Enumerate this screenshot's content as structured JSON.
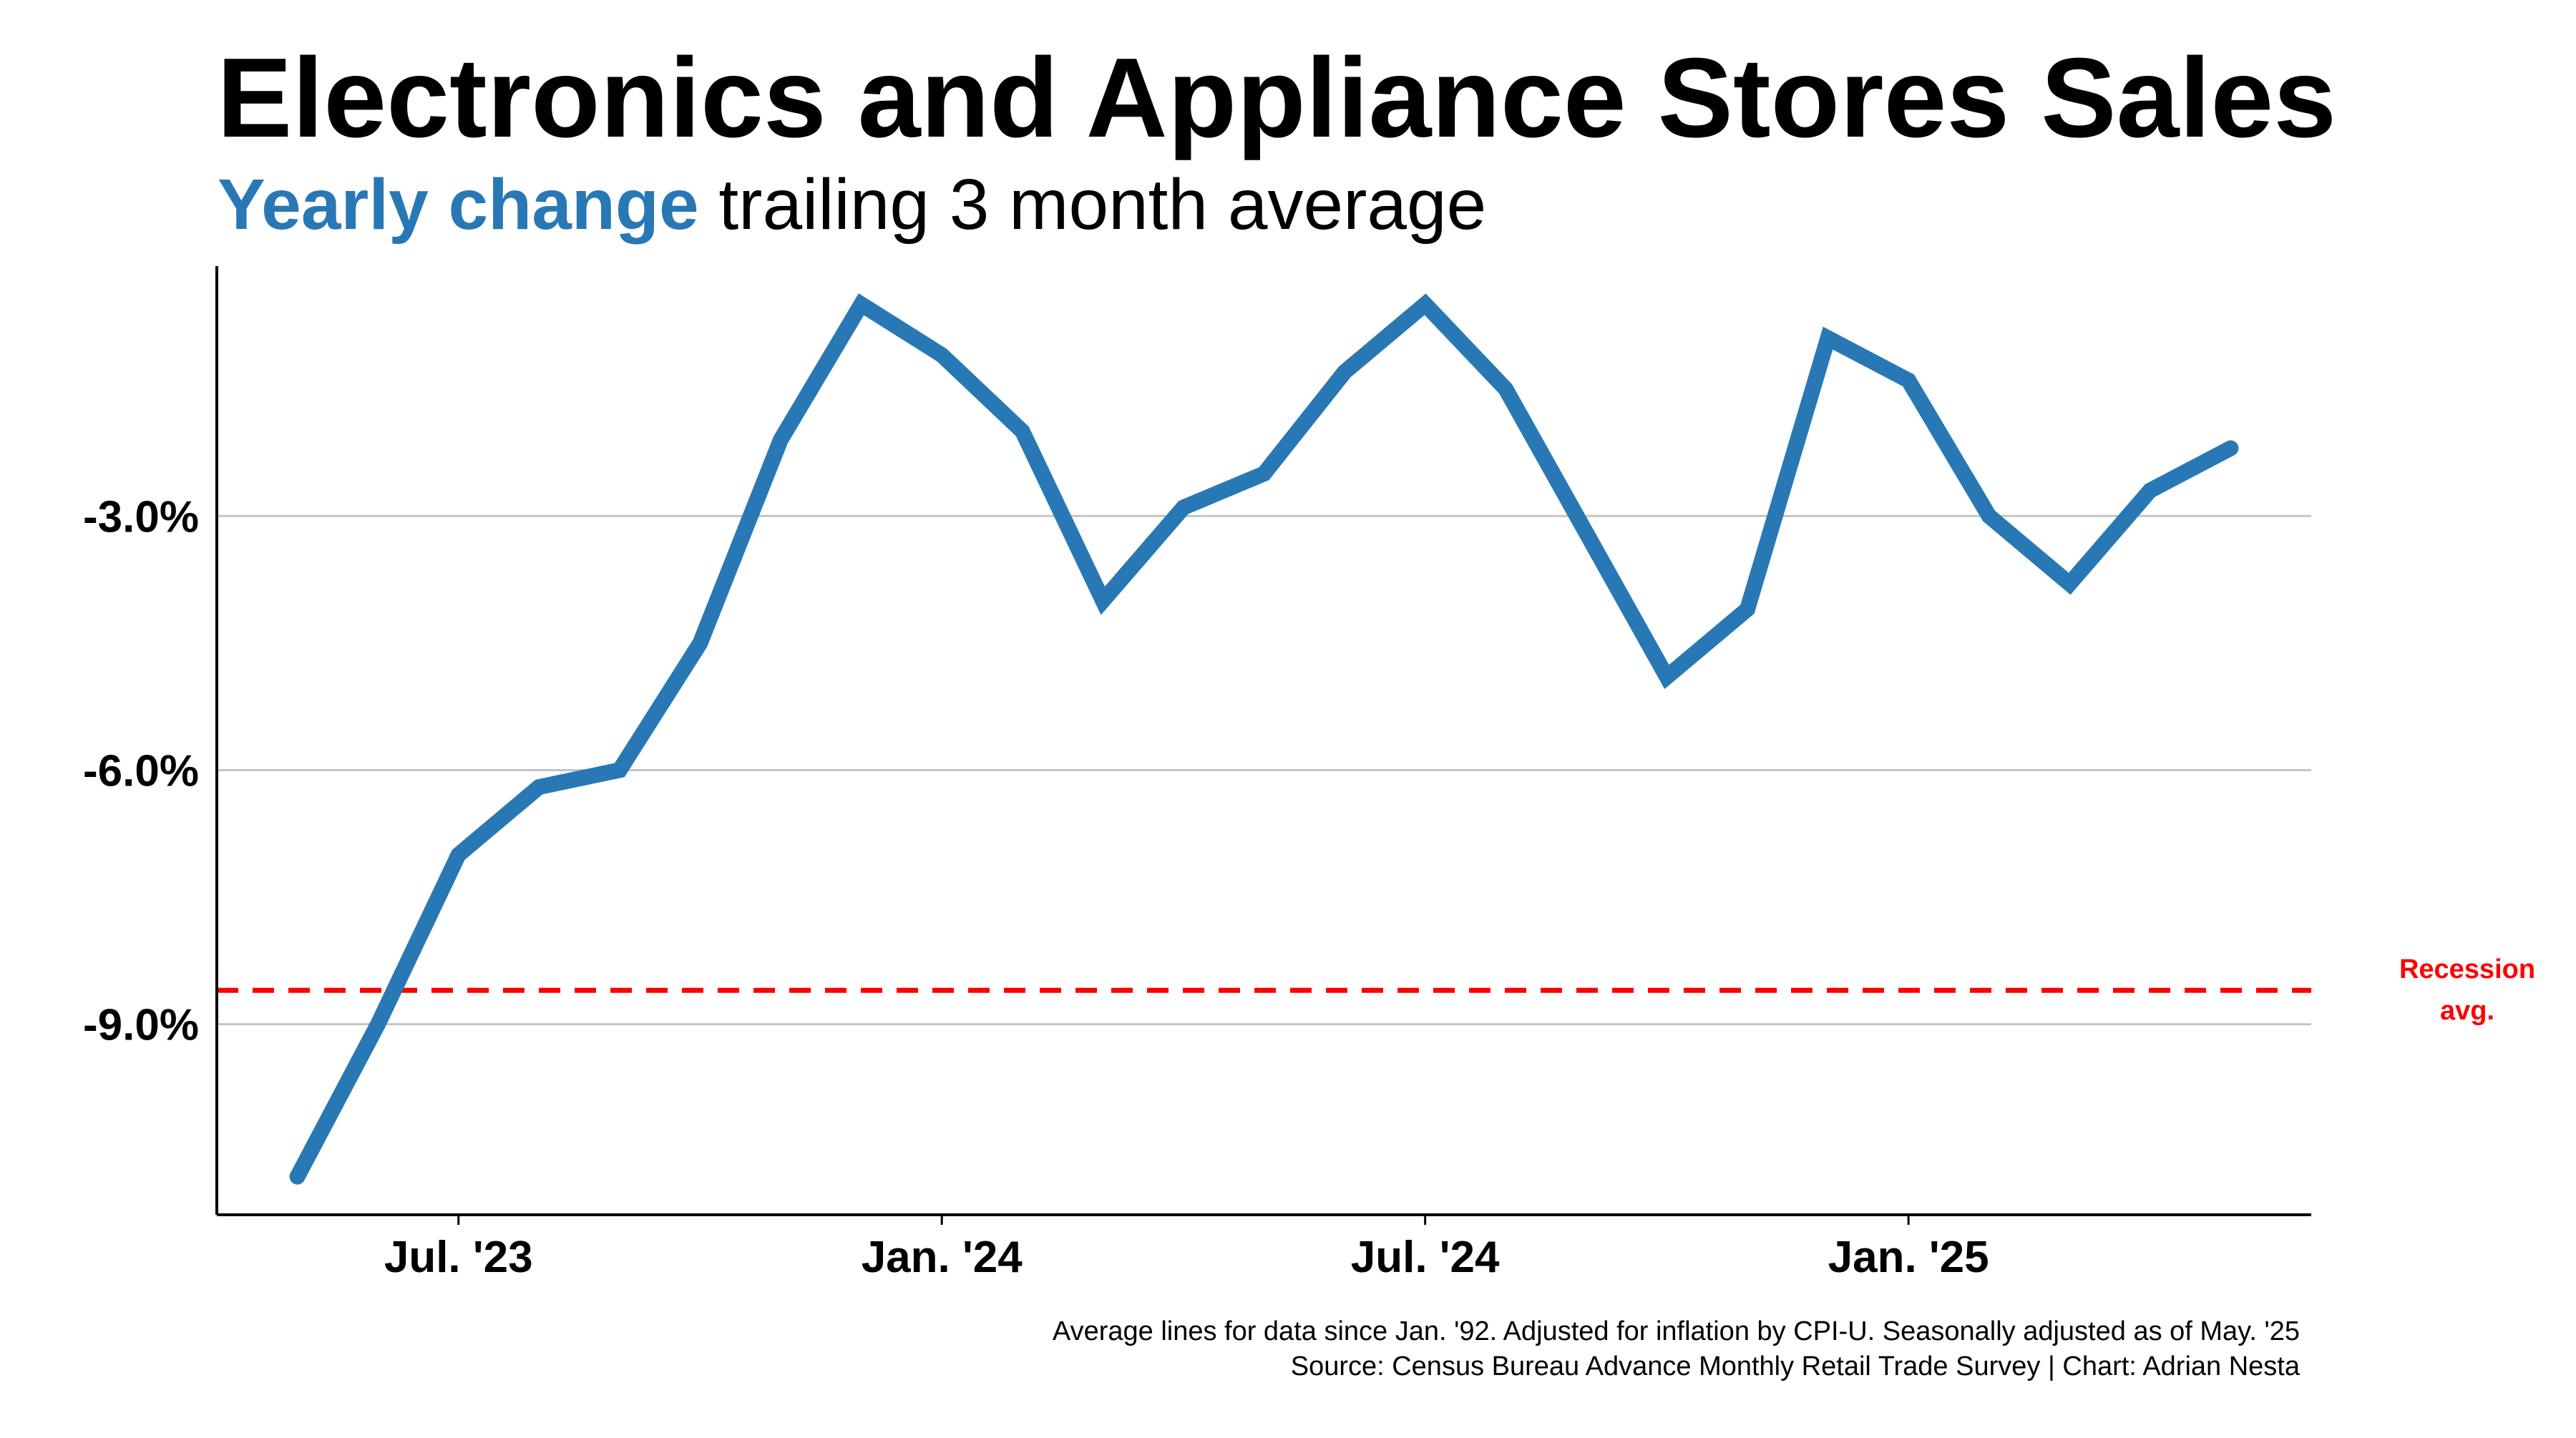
{
  "title": "Electronics and Appliance Stores Sales",
  "subtitle": {
    "accent_text": "Yearly change",
    "rest_text": " trailing 3 month average",
    "accent_color": "#2878b5"
  },
  "footnotes": [
    "Average lines for data since Jan. '92. Adjusted for inflation by CPI-U. Seasonally adjusted as of May. '25",
    "Source: Census Bureau Advance Monthly Retail Trade Survey | Chart: Adrian Nesta"
  ],
  "chart_data": {
    "type": "line",
    "title": "Electronics and Appliance Stores Sales",
    "subtitle": "Yearly change trailing 3 month average",
    "xlabel": "",
    "ylabel": "",
    "x": [
      "2023-05",
      "2023-06",
      "2023-07",
      "2023-08",
      "2023-09",
      "2023-10",
      "2023-11",
      "2023-12",
      "2024-01",
      "2024-02",
      "2024-03",
      "2024-04",
      "2024-05",
      "2024-06",
      "2024-07",
      "2024-08",
      "2024-09",
      "2024-10",
      "2024-11",
      "2024-12",
      "2025-01",
      "2025-02",
      "2025-03",
      "2025-04",
      "2025-05"
    ],
    "series": [
      {
        "values": [
          -10.8,
          -9.0,
          -7.0,
          -6.2,
          -6.0,
          -4.5,
          -2.1,
          -0.5,
          -1.1,
          -2.0,
          -4.0,
          -2.9,
          -2.5,
          -1.3,
          -0.5,
          -1.5,
          -3.2,
          -4.9,
          -4.1,
          -0.9,
          -1.4,
          -3.0,
          -3.8,
          -2.7,
          -2.2
        ],
        "color": "#2878b5"
      }
    ],
    "x_ticks": [
      {
        "x": "2023-07",
        "label": "Jul. '23"
      },
      {
        "x": "2024-01",
        "label": "Jan. '24"
      },
      {
        "x": "2024-07",
        "label": "Jul. '24"
      },
      {
        "x": "2025-01",
        "label": "Jan. '25"
      }
    ],
    "y_ticks": [
      {
        "value": -3.0,
        "label": "-3.0%"
      },
      {
        "value": -6.0,
        "label": "-6.0%"
      },
      {
        "value": -9.0,
        "label": "-9.0%"
      }
    ],
    "ylim": [
      -11.25,
      -0.05
    ],
    "xlim": [
      "2023-04",
      "2025-06"
    ],
    "grid": "horizontal",
    "reference_lines": [
      {
        "value": -8.6,
        "label_line1": "Recession",
        "label_line2": "avg.",
        "color": "#ff0000",
        "style": "dashed"
      }
    ],
    "legend": "none"
  }
}
